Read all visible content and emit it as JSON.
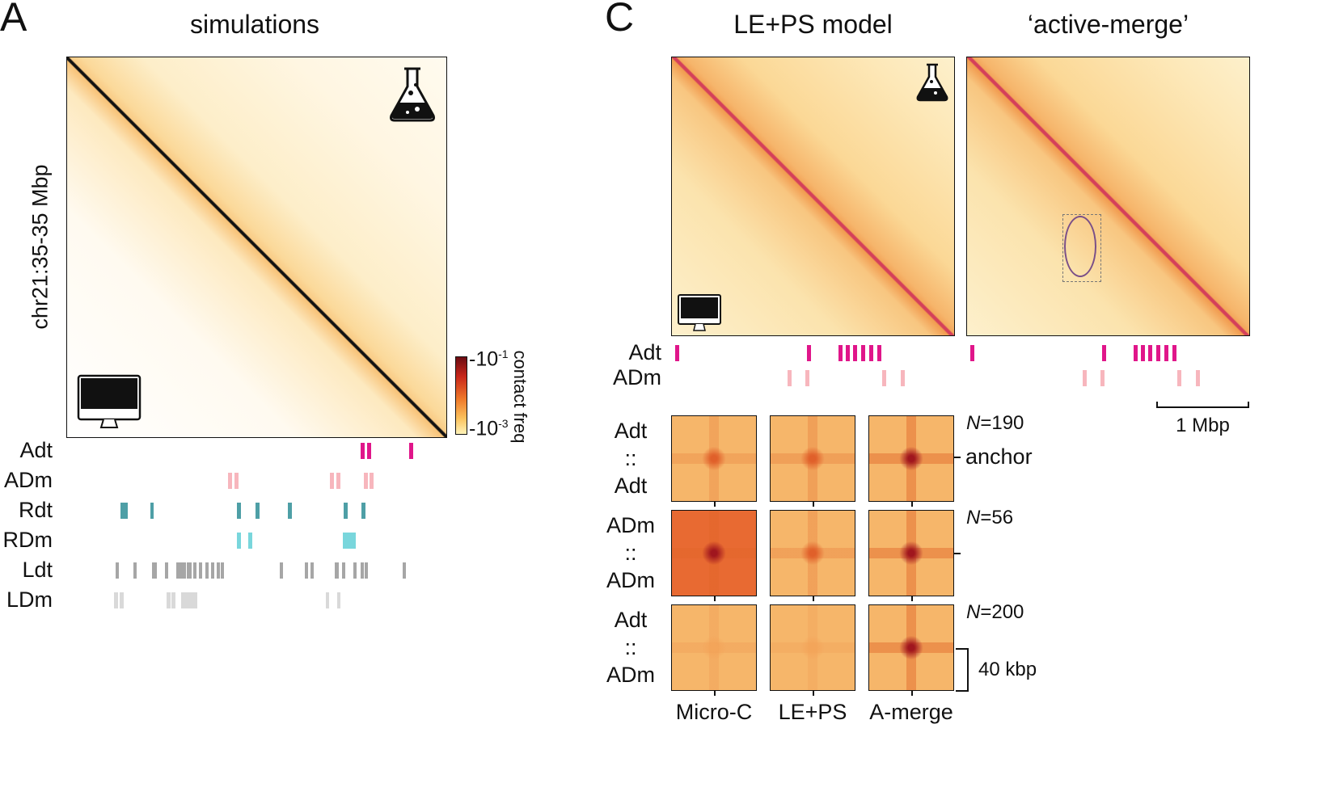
{
  "panelA": {
    "letter": "A",
    "title": "simulations",
    "ylabel": "chr21:35-35 Mbp",
    "colorbar": {
      "label": "contact freq",
      "max": "10",
      "max_exp": "-1",
      "min": "10",
      "min_exp": "-3",
      "colors": [
        "#fff3b8",
        "#fbc35e",
        "#ef7a2a",
        "#c8261a",
        "#6b0c12"
      ]
    },
    "tracks": [
      {
        "label": "Adt",
        "color": "#e0168a"
      },
      {
        "label": "ADm",
        "color": "#f7b6bd"
      },
      {
        "label": "Rdt",
        "color": "#4e9fa6"
      },
      {
        "label": "RDm",
        "color": "#79d6dc"
      },
      {
        "label": "Ldt",
        "color": "#a6a6a6"
      },
      {
        "label": "LDm",
        "color": "#d9d9d9"
      }
    ],
    "icons": [
      "flask-icon",
      "computer-monitor-icon"
    ]
  },
  "panelC": {
    "letter": "C",
    "titles": [
      "LE+PS model",
      "‘active-merge’"
    ],
    "tracks": [
      {
        "label": "Adt",
        "color": "#e0168a"
      },
      {
        "label": "ADm",
        "color": "#f7b6bd"
      }
    ],
    "scalebar": "1 Mbp",
    "pileups": {
      "rows": [
        {
          "top": "Adt",
          "mid": "::",
          "bottom": "Adt",
          "n_prefix": "N",
          "n": "=190"
        },
        {
          "top": "ADm",
          "mid": "::",
          "bottom": "ADm",
          "n_prefix": "N",
          "n": "=56"
        },
        {
          "top": "Adt",
          "mid": "::",
          "bottom": "ADm",
          "n_prefix": "N",
          "n": "=200"
        }
      ],
      "columns": [
        "Micro-C",
        "LE+PS",
        "A-merge"
      ],
      "anchor_label": "anchor",
      "size_label": "40 kbp"
    }
  }
}
